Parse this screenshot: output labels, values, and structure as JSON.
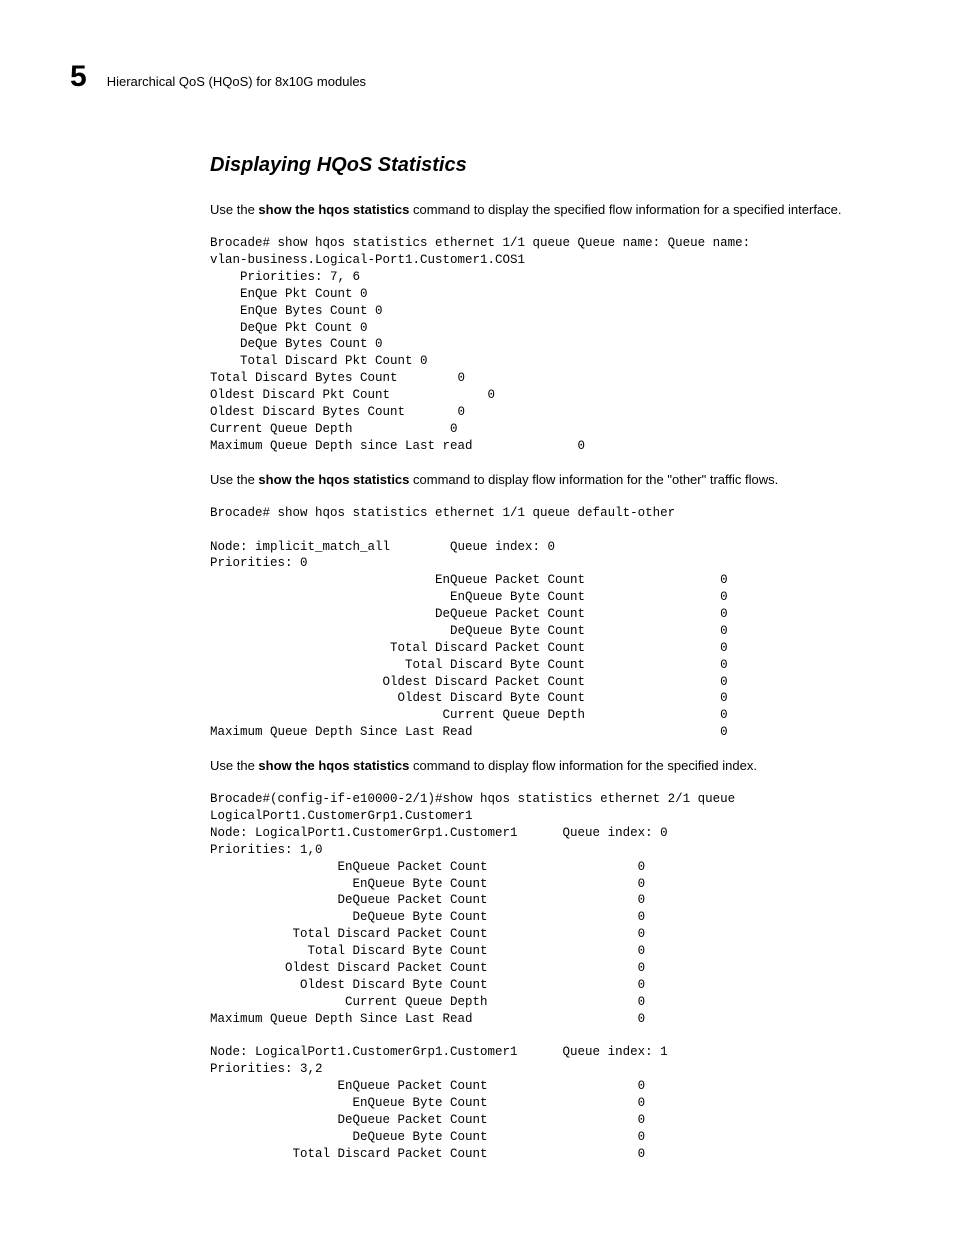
{
  "header": {
    "chapter_number": "5",
    "title": "Hierarchical QoS (HQoS) for 8x10G modules"
  },
  "section": {
    "title": "Displaying HQoS Statistics"
  },
  "para1": {
    "pre": "Use the ",
    "bold": "show the hqos statistics",
    "post": " command to display the specified flow information for a specified interface."
  },
  "code1": "Brocade# show hqos statistics ethernet 1/1 queue Queue name: Queue name: \nvlan-business.Logical-Port1.Customer1.COS1\n    Priorities: 7, 6\n    EnQue Pkt Count 0\n    EnQue Bytes Count 0\n    DeQue Pkt Count 0\n    DeQue Bytes Count 0\n    Total Discard Pkt Count 0\nTotal Discard Bytes Count        0\nOldest Discard Pkt Count             0\nOldest Discard Bytes Count       0\nCurrent Queue Depth             0\nMaximum Queue Depth since Last read              0",
  "para2": {
    "pre": "Use the ",
    "bold": "show the hqos statistics",
    "post": " command to display flow information for the \"other\" traffic flows."
  },
  "code2": "Brocade# show hqos statistics ethernet 1/1 queue default-other\n\nNode: implicit_match_all        Queue index: 0\nPriorities: 0\n                              EnQueue Packet Count                  0\n                                EnQueue Byte Count                  0\n                              DeQueue Packet Count                  0\n                                DeQueue Byte Count                  0\n                        Total Discard Packet Count                  0\n                          Total Discard Byte Count                  0\n                       Oldest Discard Packet Count                  0\n                         Oldest Discard Byte Count                  0\n                               Current Queue Depth                  0\nMaximum Queue Depth Since Last Read                                 0",
  "para3": {
    "pre": "Use the ",
    "bold": "show the hqos statistics",
    "post": " command to display flow information for the specified index."
  },
  "code3": "Brocade#(config-if-e10000-2/1)#show hqos statistics ethernet 2/1 queue \nLogicalPort1.CustomerGrp1.Customer1\nNode: LogicalPort1.CustomerGrp1.Customer1      Queue index: 0\nPriorities: 1,0\n                 EnQueue Packet Count                    0\n                   EnQueue Byte Count                    0\n                 DeQueue Packet Count                    0\n                   DeQueue Byte Count                    0\n           Total Discard Packet Count                    0\n             Total Discard Byte Count                    0\n          Oldest Discard Packet Count                    0\n            Oldest Discard Byte Count                    0\n                  Current Queue Depth                    0\nMaximum Queue Depth Since Last Read                      0\n\nNode: LogicalPort1.CustomerGrp1.Customer1      Queue index: 1\nPriorities: 3,2\n                 EnQueue Packet Count                    0\n                   EnQueue Byte Count                    0\n                 DeQueue Packet Count                    0\n                   DeQueue Byte Count                    0\n           Total Discard Packet Count                    0"
}
